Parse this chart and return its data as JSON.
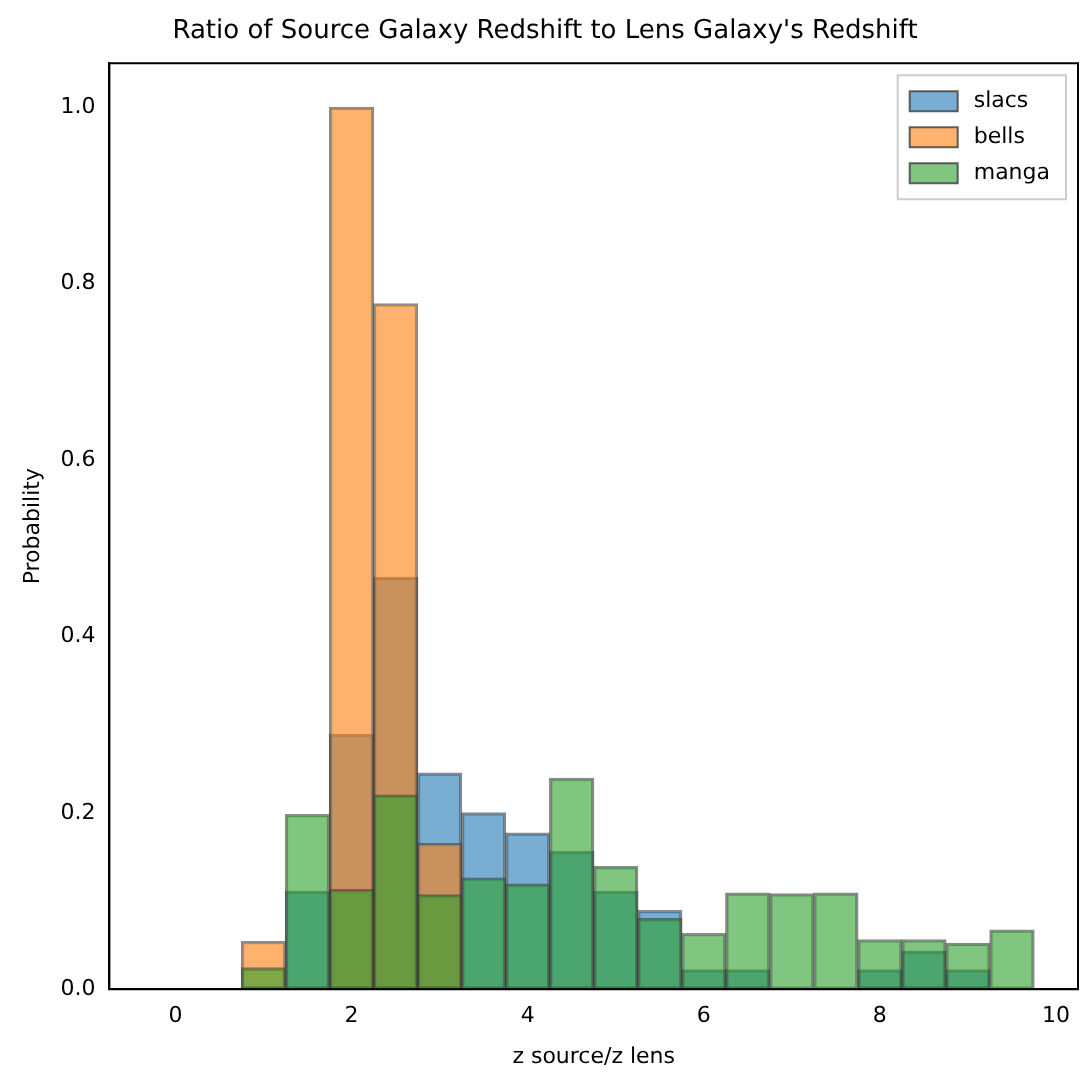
{
  "chart_data": {
    "type": "histogram",
    "title": "Ratio of Source Galaxy Redshift to Lens Galaxy's Redshift",
    "xlabel": "z source/z lens",
    "ylabel": "Probability",
    "bins": [
      -0.25,
      0.25,
      0.75,
      1.25,
      1.75,
      2.25,
      2.75,
      3.25,
      3.75,
      4.25,
      4.75,
      5.25,
      5.75,
      6.25,
      6.75,
      7.25,
      7.75,
      8.25,
      8.75,
      9.25,
      9.75
    ],
    "series": [
      {
        "name": "slacs",
        "color": "#79add2",
        "values": [
          0,
          0,
          0,
          0.111,
          0.289,
          0.467,
          0.245,
          0.2,
          0.177,
          0.156,
          0.111,
          0.089,
          0.022,
          0.022,
          0,
          0,
          0.022,
          0.043,
          0.022,
          0
        ]
      },
      {
        "name": "bells",
        "color": "#ffb26e",
        "values": [
          0,
          0,
          0.054,
          0,
          1.0,
          0.777,
          0.165,
          0,
          0,
          0,
          0,
          0,
          0,
          0,
          0,
          0,
          0,
          0,
          0,
          0
        ]
      },
      {
        "name": "manga",
        "color": "#80c680",
        "values": [
          0,
          0,
          0.024,
          0.198,
          0.113,
          0.22,
          0.107,
          0.126,
          0.119,
          0.239,
          0.139,
          0.08,
          0.063,
          0.109,
          0.108,
          0.109,
          0.056,
          0.056,
          0.052,
          0.067
        ]
      }
    ],
    "xlim": [
      -0.75,
      10.25
    ],
    "xticks": [
      0,
      2,
      4,
      6,
      8,
      10
    ],
    "ylim": [
      0,
      1.05
    ],
    "yticks": [
      {
        "value": 0,
        "label": "0.0"
      },
      {
        "value": 0.2,
        "label": "0.2"
      },
      {
        "value": 0.4,
        "label": "0.4"
      },
      {
        "value": 0.6,
        "label": "0.6"
      },
      {
        "value": 0.8,
        "label": "0.8"
      },
      {
        "value": 1.0,
        "label": "1.0"
      }
    ],
    "grid": false,
    "legend": "top right"
  }
}
